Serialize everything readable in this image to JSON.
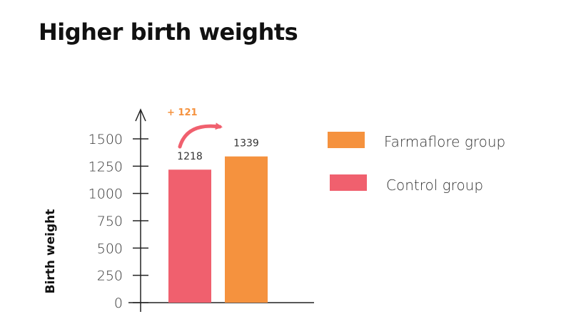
{
  "title": "Higher birth weights",
  "chart_data": {
    "type": "bar",
    "categories": [
      "Control group",
      "Farmaflore group"
    ],
    "values": [
      1218,
      1339
    ],
    "data_labels": [
      "1218",
      "1339"
    ],
    "colors": [
      "#f0606e",
      "#f5923e"
    ],
    "ylabel": "Birth weight",
    "ylim": [
      0,
      1500
    ],
    "yticks": [
      0,
      250,
      500,
      750,
      1000,
      1250,
      1500
    ],
    "grid": false,
    "annotation": {
      "text": "+ 121",
      "color": "#f5923e",
      "arrow_color": "#f0606e"
    },
    "legend": [
      {
        "label": "Farmaflore group",
        "color": "#f5923e"
      },
      {
        "label": "Control group",
        "color": "#f0606e"
      }
    ],
    "legend_position": "right"
  }
}
